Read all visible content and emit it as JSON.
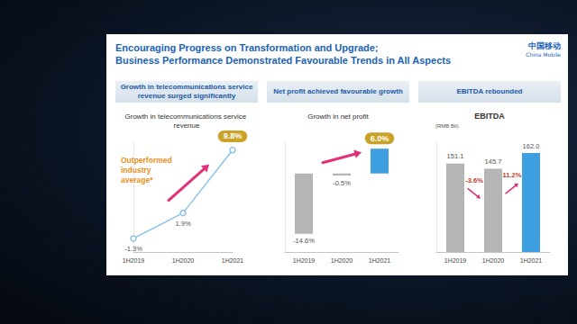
{
  "slide": {
    "title": [
      "Encouraging Progress on Transformation and Upgrade;",
      "Business Performance Demonstrated Favourable Trends in All Aspects"
    ],
    "logo": [
      "中国移动",
      "China Mobile"
    ]
  },
  "chart_data": [
    {
      "type": "line",
      "title": "Growth in telecommunications service revenue surged significantly",
      "subtitle": "Growth in telecommunications service revenue",
      "categories": [
        "1H2019",
        "1H2020",
        "1H2021"
      ],
      "values": [
        -1.3,
        1.9,
        9.8
      ],
      "value_labels": [
        "-1.3%",
        "1.9%",
        "9.8%"
      ],
      "data_labels": true,
      "color": "#8cc3ea",
      "marker": "circle",
      "ylim": [
        -3,
        11
      ],
      "tick_labels": "x",
      "grid": false,
      "annotations": [
        "Outperformed industry average*"
      ]
    },
    {
      "type": "bar",
      "title": "Net profit achieved favourable growth",
      "subtitle": "Growth in net profit",
      "categories": [
        "1H2019",
        "1H2020",
        "1H2021"
      ],
      "values": [
        -14.6,
        -0.5,
        6.0
      ],
      "value_labels": [
        "-14.6%",
        "-0.5%",
        "6.0%"
      ],
      "data_labels": true,
      "colors": [
        "#b5b5b5",
        "#b5b5b5",
        "#3d9ee0"
      ],
      "ylim": [
        -19,
        8
      ],
      "tick_labels": "x",
      "grid": false
    },
    {
      "type": "bar",
      "title": "EBITDA rebounded",
      "subtitle": "EBITDA",
      "ylabel": "(RMB Bil)",
      "categories": [
        "1H2019",
        "1H2020",
        "1H2021"
      ],
      "values": [
        151.1,
        145.7,
        162.0
      ],
      "value_labels": [
        "151.1",
        "145.7",
        "162.0"
      ],
      "data_labels": true,
      "colors": [
        "#b5b5b5",
        "#b5b5b5",
        "#3d9ee0"
      ],
      "ylim": [
        60,
        175
      ],
      "tick_labels": "x",
      "grid": false,
      "annotations": [
        "-3.6%",
        "11.2%"
      ]
    }
  ]
}
